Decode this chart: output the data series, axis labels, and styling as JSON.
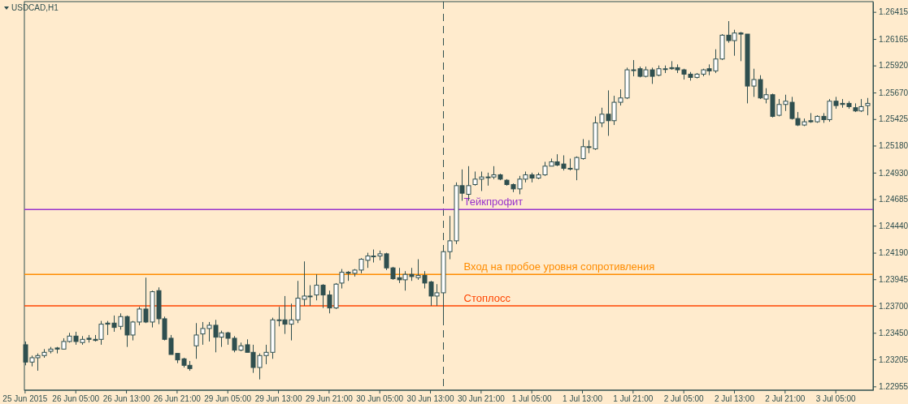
{
  "chart_data": {
    "type": "candlestick",
    "title": "USDCAD,H1",
    "color": "#2f4f4f",
    "categories": [
      "25 Jun 2015",
      null,
      null,
      null,
      null,
      null,
      null,
      null,
      "26 Jun 05:00",
      null,
      null,
      null,
      null,
      null,
      null,
      null,
      "26 Jun 13:00",
      null,
      null,
      null,
      null,
      null,
      null,
      null,
      "26 Jun 21:00",
      null,
      null,
      null,
      null,
      null,
      null,
      null,
      "29 Jun 05:00",
      null,
      null,
      null,
      null,
      null,
      null,
      null,
      "29 Jun 13:00",
      null,
      null,
      null,
      null,
      null,
      null,
      null,
      "29 Jun 21:00",
      null,
      null,
      null,
      null,
      null,
      null,
      null,
      "30 Jun 05:00",
      null,
      null,
      null,
      null,
      null,
      null,
      null,
      "30 Jun 13:00",
      null,
      null,
      null,
      null,
      null,
      null,
      null,
      "30 Jun 21:00",
      null,
      null,
      null,
      null,
      null,
      null,
      null,
      "1 Jul 05:00",
      null,
      null,
      null,
      null,
      null,
      null,
      null,
      "1 Jul 13:00",
      null,
      null,
      null,
      null,
      null,
      null,
      null,
      "1 Jul 21:00",
      null,
      null,
      null,
      null,
      null,
      null,
      null,
      "2 Jul 05:00",
      null,
      null,
      null,
      null,
      null,
      null,
      null,
      "2 Jul 13:00",
      null,
      null,
      null,
      null,
      null,
      null,
      null,
      "2 Jul 21:00",
      null,
      null,
      null,
      null,
      null,
      null,
      null,
      "3 Jul 05:00",
      null,
      null,
      null,
      null,
      null
    ],
    "ohlc": [
      [
        1.2334,
        1.2337,
        1.2315,
        1.2318
      ],
      [
        1.2318,
        1.2324,
        1.2314,
        1.2322
      ],
      [
        1.2322,
        1.2326,
        1.231,
        1.2324
      ],
      [
        1.2324,
        1.233,
        1.2322,
        1.2327
      ],
      [
        1.2328,
        1.2332,
        1.2326,
        1.233
      ],
      [
        1.2331,
        1.2332,
        1.2326,
        1.233
      ],
      [
        1.233,
        1.234,
        1.233,
        1.2337
      ],
      [
        1.2337,
        1.2345,
        1.2336,
        1.2342
      ],
      [
        1.2342,
        1.2346,
        1.2334,
        1.2337
      ],
      [
        1.2336,
        1.2342,
        1.2334,
        1.2339
      ],
      [
        1.234,
        1.2343,
        1.2336,
        1.2339
      ],
      [
        1.2339,
        1.2343,
        1.2337,
        1.2338
      ],
      [
        1.2339,
        1.2356,
        1.2334,
        1.2353
      ],
      [
        1.2354,
        1.2356,
        1.2343,
        1.2353
      ],
      [
        1.2354,
        1.2361,
        1.2346,
        1.235
      ],
      [
        1.2351,
        1.2363,
        1.2348,
        1.236
      ],
      [
        1.236,
        1.2361,
        1.2332,
        1.2343
      ],
      [
        1.2343,
        1.2356,
        1.2338,
        1.2355
      ],
      [
        1.2355,
        1.2369,
        1.2352,
        1.2367
      ],
      [
        1.2367,
        1.2396,
        1.2354,
        1.2355
      ],
      [
        1.2355,
        1.2384,
        1.235,
        1.2383
      ],
      [
        1.2384,
        1.2387,
        1.2353,
        1.2358
      ],
      [
        1.2358,
        1.236,
        1.2338,
        1.2339
      ],
      [
        1.234,
        1.2343,
        1.2325,
        1.2325
      ],
      [
        1.2326,
        1.2326,
        1.2317,
        1.232
      ],
      [
        1.2321,
        1.2322,
        1.2313,
        1.2315
      ],
      [
        1.2315,
        1.2319,
        1.231,
        1.2312
      ],
      [
        1.2333,
        1.2354,
        1.2321,
        1.2343
      ],
      [
        1.2344,
        1.2355,
        1.2334,
        1.2349
      ],
      [
        1.2349,
        1.2355,
        1.2337,
        1.2352
      ],
      [
        1.2352,
        1.2357,
        1.2327,
        1.2341
      ],
      [
        1.2341,
        1.2347,
        1.2332,
        1.2345
      ],
      [
        1.2345,
        1.2346,
        1.2334,
        1.234
      ],
      [
        1.234,
        1.2342,
        1.2327,
        1.2329
      ],
      [
        1.2329,
        1.2336,
        1.2328,
        1.2333
      ],
      [
        1.2334,
        1.2339,
        1.2327,
        1.2327
      ],
      [
        1.2327,
        1.2334,
        1.2308,
        1.2313
      ],
      [
        1.2313,
        1.2326,
        1.2302,
        1.2324
      ],
      [
        1.2324,
        1.2334,
        1.2316,
        1.2327
      ],
      [
        1.2327,
        1.2359,
        1.2321,
        1.2357
      ],
      [
        1.2357,
        1.2369,
        1.2351,
        1.2357
      ],
      [
        1.2357,
        1.2379,
        1.2344,
        1.2353
      ],
      [
        1.2353,
        1.2372,
        1.2338,
        1.2357
      ],
      [
        1.2357,
        1.2393,
        1.2354,
        1.2377
      ],
      [
        1.2376,
        1.2411,
        1.237,
        1.2379
      ],
      [
        1.2379,
        1.2389,
        1.237,
        1.2379
      ],
      [
        1.238,
        1.2399,
        1.2375,
        1.2389
      ],
      [
        1.2389,
        1.239,
        1.2368,
        1.238
      ],
      [
        1.238,
        1.2384,
        1.2363,
        1.2368
      ],
      [
        1.2368,
        1.2391,
        1.2367,
        1.239
      ],
      [
        1.2391,
        1.2404,
        1.2386,
        1.2401
      ],
      [
        1.2401,
        1.2402,
        1.2393,
        1.24
      ],
      [
        1.24,
        1.2404,
        1.2397,
        1.2403
      ],
      [
        1.2403,
        1.2414,
        1.24,
        1.2413
      ],
      [
        1.2412,
        1.2419,
        1.2405,
        1.2416
      ],
      [
        1.2416,
        1.2422,
        1.241,
        1.2416
      ],
      [
        1.2416,
        1.2421,
        1.2412,
        1.2418
      ],
      [
        1.2418,
        1.2419,
        1.2403,
        1.2405
      ],
      [
        1.2405,
        1.2406,
        1.2394,
        1.2395
      ],
      [
        1.2396,
        1.2405,
        1.2391,
        1.2394
      ],
      [
        1.2394,
        1.2402,
        1.2384,
        1.2399
      ],
      [
        1.2399,
        1.2405,
        1.2393,
        1.2397
      ],
      [
        1.2396,
        1.2413,
        1.2394,
        1.2398
      ],
      [
        1.2398,
        1.2402,
        1.2386,
        1.2391
      ],
      [
        1.2392,
        1.2393,
        1.237,
        1.2379
      ],
      [
        1.2379,
        1.239,
        1.237,
        1.2382
      ],
      [
        1.2382,
        1.2422,
        1.2355,
        1.242
      ],
      [
        1.242,
        1.2453,
        1.2413,
        1.243
      ],
      [
        1.243,
        1.2484,
        1.2427,
        1.2481
      ],
      [
        1.2481,
        1.2496,
        1.2467,
        1.2474
      ],
      [
        1.2473,
        1.2499,
        1.2467,
        1.2481
      ],
      [
        1.2482,
        1.2494,
        1.2481,
        1.2487
      ],
      [
        1.2487,
        1.2494,
        1.2476,
        1.2489
      ],
      [
        1.2489,
        1.2493,
        1.2481,
        1.2489
      ],
      [
        1.2489,
        1.2499,
        1.2487,
        1.2491
      ],
      [
        1.2491,
        1.2492,
        1.2486,
        1.2487
      ],
      [
        1.2486,
        1.2487,
        1.2481,
        1.2482
      ],
      [
        1.2482,
        1.2483,
        1.2475,
        1.2478
      ],
      [
        1.2478,
        1.249,
        1.2473,
        1.2487
      ],
      [
        1.2487,
        1.2494,
        1.2484,
        1.2491
      ],
      [
        1.2491,
        1.2493,
        1.2484,
        1.2488
      ],
      [
        1.2488,
        1.2493,
        1.2487,
        1.2491
      ],
      [
        1.2491,
        1.2503,
        1.249,
        1.2499
      ],
      [
        1.2499,
        1.2506,
        1.2499,
        1.2503
      ],
      [
        1.2503,
        1.251,
        1.2499,
        1.25
      ],
      [
        1.2501,
        1.2509,
        1.2495,
        1.2497
      ],
      [
        1.2497,
        1.2506,
        1.2495,
        1.2497
      ],
      [
        1.2496,
        1.2508,
        1.2486,
        1.2507
      ],
      [
        1.2506,
        1.2524,
        1.2505,
        1.2517
      ],
      [
        1.2517,
        1.2523,
        1.2511,
        1.2517
      ],
      [
        1.2515,
        1.2545,
        1.2514,
        1.2539
      ],
      [
        1.2539,
        1.2553,
        1.2535,
        1.2547
      ],
      [
        1.2547,
        1.2569,
        1.2527,
        1.2541
      ],
      [
        1.2541,
        1.2564,
        1.2537,
        1.2558
      ],
      [
        1.2558,
        1.257,
        1.2555,
        1.2562
      ],
      [
        1.2562,
        1.259,
        1.2561,
        1.2588
      ],
      [
        1.2588,
        1.2597,
        1.2582,
        1.2588
      ],
      [
        1.2589,
        1.2591,
        1.2581,
        1.2582
      ],
      [
        1.2582,
        1.2591,
        1.2581,
        1.2588
      ],
      [
        1.2588,
        1.259,
        1.2575,
        1.2582
      ],
      [
        1.2583,
        1.2592,
        1.2582,
        1.2589
      ],
      [
        1.2589,
        1.2592,
        1.2585,
        1.2589
      ],
      [
        1.259,
        1.2596,
        1.2588,
        1.2589
      ],
      [
        1.259,
        1.2593,
        1.2585,
        1.2588
      ],
      [
        1.2588,
        1.2589,
        1.2579,
        1.2584
      ],
      [
        1.2584,
        1.2586,
        1.2578,
        1.2581
      ],
      [
        1.2581,
        1.2585,
        1.258,
        1.2584
      ],
      [
        1.2584,
        1.2589,
        1.2582,
        1.2588
      ],
      [
        1.2589,
        1.2593,
        1.2583,
        1.2587
      ],
      [
        1.2587,
        1.2607,
        1.2585,
        1.2598
      ],
      [
        1.2598,
        1.2621,
        1.2597,
        1.262
      ],
      [
        1.262,
        1.2633,
        1.2613,
        1.2615
      ],
      [
        1.2615,
        1.2625,
        1.2601,
        1.2622
      ],
      [
        1.2622,
        1.2623,
        1.2596,
        1.2621
      ],
      [
        1.2621,
        1.2621,
        1.2557,
        1.2573
      ],
      [
        1.2573,
        1.2589,
        1.2563,
        1.2579
      ],
      [
        1.2579,
        1.2583,
        1.2561,
        1.2562
      ],
      [
        1.2561,
        1.2571,
        1.2557,
        1.2565
      ],
      [
        1.2565,
        1.2566,
        1.2544,
        1.2545
      ],
      [
        1.2546,
        1.2561,
        1.2545,
        1.2556
      ],
      [
        1.2556,
        1.2565,
        1.255,
        1.2559
      ],
      [
        1.2558,
        1.2563,
        1.2542,
        1.2543
      ],
      [
        1.2543,
        1.2549,
        1.2536,
        1.2537
      ],
      [
        1.2537,
        1.2543,
        1.2536,
        1.254
      ],
      [
        1.2541,
        1.2548,
        1.2539,
        1.254
      ],
      [
        1.254,
        1.2546,
        1.2539,
        1.2545
      ],
      [
        1.2545,
        1.2548,
        1.2539,
        1.2542
      ],
      [
        1.2542,
        1.2561,
        1.254,
        1.2559
      ],
      [
        1.2559,
        1.2563,
        1.2552,
        1.2555
      ],
      [
        1.2557,
        1.2561,
        1.2553,
        1.2556
      ],
      [
        1.2557,
        1.2559,
        1.2552,
        1.2554
      ],
      [
        1.2553,
        1.2557,
        1.2549,
        1.255
      ],
      [
        1.255,
        1.2561,
        1.2549,
        1.2554
      ],
      [
        1.2555,
        1.2562,
        1.2546,
        1.2557
      ]
    ],
    "ref_lines": [
      {
        "axis": "y",
        "value": 1.2459,
        "label": "Тейкпрофит",
        "color": "#9932cc"
      },
      {
        "axis": "y",
        "value": 1.2399,
        "label": "Вход на пробое уровня сопротивления",
        "color": "#ff8c00"
      },
      {
        "axis": "y",
        "value": 1.237,
        "label": "Стоплосс",
        "color": "#ff4500"
      }
    ],
    "ylim": [
      1.2292,
      1.2651
    ],
    "yticks": [
      1.22955,
      1.23205,
      {
        "value": 1.2345,
        "label": "1.23450"
      },
      {
        "value": 1.237,
        "label": "1.23700"
      },
      1.23945,
      {
        "value": 1.2419,
        "label": "1.24190"
      },
      {
        "value": 1.2444,
        "label": "1.24440"
      },
      1.24685,
      {
        "value": 1.2493,
        "label": "1.24930"
      },
      {
        "value": 1.2518,
        "label": "1.25180"
      },
      1.25425,
      {
        "value": 1.2567,
        "label": "1.25670"
      },
      {
        "value": 1.2592,
        "label": "1.25920"
      },
      1.26165,
      1.26415
    ]
  }
}
